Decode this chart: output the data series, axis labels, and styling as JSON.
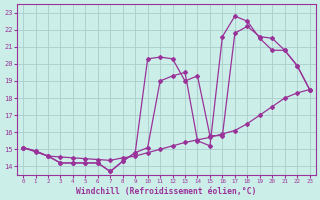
{
  "xlabel": "Windchill (Refroidissement éolien,°C)",
  "bg_color": "#cceee8",
  "grid_color": "#aacccc",
  "line_color": "#993399",
  "xlim": [
    -0.5,
    23.5
  ],
  "ylim": [
    13.5,
    23.5
  ],
  "xticks": [
    0,
    1,
    2,
    3,
    4,
    5,
    6,
    7,
    8,
    9,
    10,
    11,
    12,
    13,
    14,
    15,
    16,
    17,
    18,
    19,
    20,
    21,
    22,
    23
  ],
  "yticks": [
    14,
    15,
    16,
    17,
    18,
    19,
    20,
    21,
    22,
    23
  ],
  "line1_x": [
    0,
    1,
    2,
    3,
    4,
    5,
    6,
    7,
    8,
    9,
    10,
    11,
    12,
    13,
    14,
    15,
    16,
    17,
    18,
    19,
    20,
    21,
    22,
    23
  ],
  "line1_y": [
    15.1,
    14.85,
    14.6,
    14.55,
    14.5,
    14.45,
    14.4,
    14.35,
    14.5,
    14.6,
    14.8,
    15.0,
    15.2,
    15.4,
    15.55,
    15.7,
    15.9,
    16.1,
    16.5,
    17.0,
    17.5,
    18.0,
    18.3,
    18.5
  ],
  "line2_x": [
    0,
    1,
    2,
    3,
    4,
    5,
    6,
    7,
    8,
    9,
    10,
    11,
    12,
    13,
    14,
    15,
    16,
    17,
    18,
    19,
    20,
    21,
    22,
    23
  ],
  "line2_y": [
    15.1,
    14.9,
    14.6,
    14.2,
    14.2,
    14.2,
    14.2,
    13.7,
    14.3,
    14.8,
    15.1,
    19.0,
    19.3,
    19.5,
    15.5,
    15.2,
    21.6,
    22.8,
    22.5,
    21.5,
    20.8,
    20.8,
    19.9,
    18.5
  ],
  "line3_x": [
    0,
    1,
    2,
    3,
    4,
    5,
    6,
    7,
    8,
    9,
    10,
    11,
    12,
    13,
    14,
    15,
    16,
    17,
    18,
    19,
    20,
    21,
    22,
    23
  ],
  "line3_y": [
    15.1,
    14.9,
    14.6,
    14.2,
    14.2,
    14.2,
    14.2,
    13.7,
    14.3,
    14.8,
    20.3,
    20.4,
    20.3,
    19.0,
    19.3,
    15.8,
    15.8,
    21.8,
    22.2,
    21.6,
    21.5,
    20.8,
    19.9,
    18.5
  ]
}
